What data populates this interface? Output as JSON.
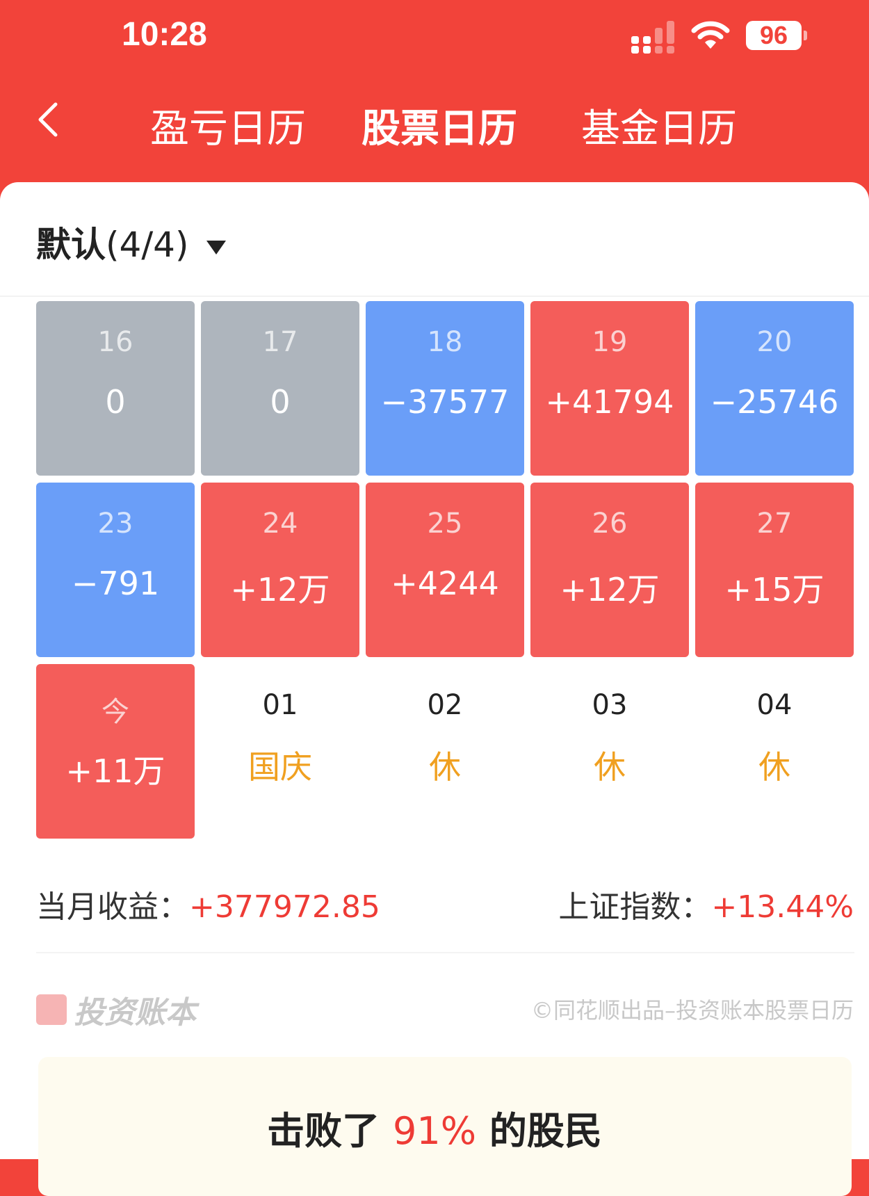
{
  "status_bar": {
    "time": "10:28",
    "battery": "96",
    "icons": [
      "cellular-signal-icon",
      "wifi-icon",
      "battery-icon"
    ]
  },
  "nav": {
    "back_icon": "chevron-left-icon",
    "tabs": [
      {
        "label": "盈亏日历"
      },
      {
        "label": "股票日历",
        "active": true
      },
      {
        "label": "基金日历"
      }
    ]
  },
  "account": {
    "name": "默认",
    "count": "(4/4)",
    "icon": "caret-down-icon"
  },
  "colors": {
    "header": "#f2433a",
    "gain": "#f45d5a",
    "loss": "#6a9ef8",
    "flat": "#aeb5bd",
    "holiday": "#f0a020"
  },
  "calendar": {
    "cells": [
      {
        "day": "16",
        "value": "0",
        "type": "flat"
      },
      {
        "day": "17",
        "value": "0",
        "type": "flat"
      },
      {
        "day": "18",
        "value": "−37577",
        "type": "loss"
      },
      {
        "day": "19",
        "value": "+41794",
        "type": "gain"
      },
      {
        "day": "20",
        "value": "−25746",
        "type": "loss"
      },
      {
        "day": "23",
        "value": "−791",
        "type": "loss"
      },
      {
        "day": "24",
        "value": "+12万",
        "type": "gain"
      },
      {
        "day": "25",
        "value": "+4244",
        "type": "gain"
      },
      {
        "day": "26",
        "value": "+12万",
        "type": "gain"
      },
      {
        "day": "27",
        "value": "+15万",
        "type": "gain"
      },
      {
        "day": "今",
        "value": "+11万",
        "type": "gain"
      },
      {
        "day": "01",
        "value": "国庆",
        "type": "holiday"
      },
      {
        "day": "02",
        "value": "休",
        "type": "holiday"
      },
      {
        "day": "03",
        "value": "休",
        "type": "holiday"
      },
      {
        "day": "04",
        "value": "休",
        "type": "holiday"
      }
    ]
  },
  "summary": {
    "month_label": "当月收益：",
    "month_value": "+377972.85",
    "index_label": "上证指数：",
    "index_value": "+13.44%"
  },
  "footer": {
    "logo": "投资账本",
    "credit": "©同花顺出品–投资账本股票日历"
  },
  "rank": {
    "prefix": "击败了 ",
    "percent": "91%",
    "suffix": " 的股民"
  }
}
